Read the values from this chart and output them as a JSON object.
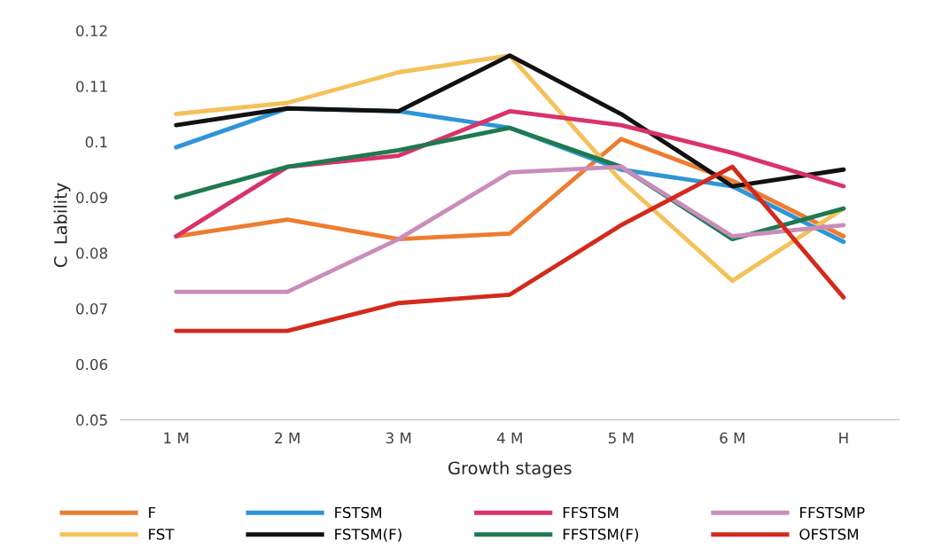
{
  "chart_data": {
    "type": "line",
    "xlabel": "Growth stages",
    "ylabel": "C  Lability",
    "categories": [
      "1 M",
      "2 M",
      "3 M",
      "4 M",
      "5 M",
      "6 M",
      "H"
    ],
    "series": [
      {
        "name": "F",
        "color": "#ed7d31",
        "values": [
          0.083,
          0.086,
          0.0825,
          0.0835,
          0.1005,
          0.093,
          0.083
        ]
      },
      {
        "name": "FST",
        "color": "#f4c15a",
        "values": [
          0.105,
          0.107,
          0.1125,
          0.1155,
          0.093,
          0.075,
          0.088
        ]
      },
      {
        "name": "FSTSM",
        "color": "#2e95d8",
        "values": [
          0.099,
          0.106,
          0.1055,
          0.1025,
          0.095,
          0.092,
          0.082
        ]
      },
      {
        "name": "FSTSM(F)",
        "color": "#111111",
        "values": [
          0.103,
          0.106,
          0.1055,
          0.1155,
          0.105,
          0.092,
          0.095
        ]
      },
      {
        "name": "FFSTSM",
        "color": "#d9336a",
        "values": [
          0.083,
          0.0955,
          0.0975,
          0.1055,
          0.103,
          0.098,
          0.092
        ]
      },
      {
        "name": "FFSTSM(F)",
        "color": "#1e7a50",
        "values": [
          0.09,
          0.0955,
          0.0985,
          0.1025,
          0.0955,
          0.0825,
          0.088
        ]
      },
      {
        "name": "FFSTSMP",
        "color": "#c98dbb",
        "values": [
          0.073,
          0.073,
          0.0825,
          0.0945,
          0.0955,
          0.083,
          0.085
        ]
      },
      {
        "name": "OFSTSM",
        "color": "#d42a1c",
        "values": [
          0.066,
          0.066,
          0.071,
          0.0725,
          0.085,
          0.0955,
          0.072
        ]
      }
    ],
    "ylim": [
      0.05,
      0.12
    ],
    "yticks": [
      0.05,
      0.06,
      0.07,
      0.08,
      0.09,
      0.1,
      0.11,
      0.12
    ],
    "legend": "bottom",
    "grid": false,
    "marker": "none",
    "line_style": "solid"
  }
}
